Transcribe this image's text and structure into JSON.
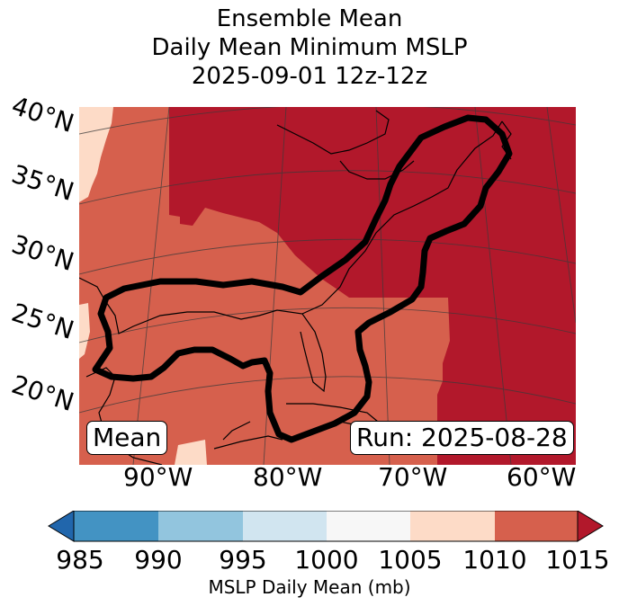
{
  "title": {
    "line1": "Ensemble Mean",
    "line2": "Daily Mean Minimum MSLP",
    "line3": "2025-09-01 12z-12z"
  },
  "map": {
    "lat_labels": [
      "40°N",
      "35°N",
      "30°N",
      "25°N",
      "20°N"
    ],
    "lon_labels": [
      "90°W",
      "80°W",
      "70°W",
      "60°W"
    ],
    "mean_box": "Mean",
    "run_box": "Run: 2025-08-28",
    "fill_colors": {
      "ge_1015": "#b2182b",
      "1010_1015": "#d6604d",
      "1005_1010": "#fddbc7",
      "1000_1005": "#f7f7f7"
    },
    "contour_color": "#000000"
  },
  "colorbar": {
    "label": "MSLP Daily Mean (mb)",
    "ticks": [
      "985",
      "990",
      "995",
      "1000",
      "1005",
      "1010",
      "1015"
    ],
    "colors": [
      "#2166ac",
      "#4393c3",
      "#92c5de",
      "#d1e5f0",
      "#f7f7f7",
      "#fddbc7",
      "#d6604d",
      "#b2182b"
    ],
    "extend": "both"
  }
}
